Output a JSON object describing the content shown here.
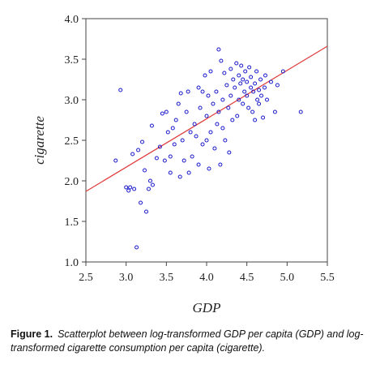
{
  "chart_data": {
    "type": "scatter",
    "xlabel": "GDP",
    "ylabel": "cigarette",
    "xlim": [
      2.5,
      5.5
    ],
    "ylim": [
      1.0,
      4.0
    ],
    "xticks": [
      "2.5",
      "3.0",
      "3.5",
      "4.0",
      "4.5",
      "5.0",
      "5.5"
    ],
    "yticks": [
      "1.0",
      "1.5",
      "2.0",
      "2.5",
      "3.0",
      "3.5",
      "4.0"
    ],
    "marker_color": "#1a1acc",
    "fit_line_color": "#e03a3a",
    "fit_line": {
      "x": [
        2.5,
        5.5
      ],
      "y": [
        1.87,
        3.66
      ]
    },
    "points": [
      {
        "x": 2.87,
        "y": 2.25
      },
      {
        "x": 2.93,
        "y": 3.12
      },
      {
        "x": 3.0,
        "y": 1.92
      },
      {
        "x": 3.03,
        "y": 1.88
      },
      {
        "x": 3.05,
        "y": 1.92
      },
      {
        "x": 3.08,
        "y": 2.33
      },
      {
        "x": 3.1,
        "y": 1.9
      },
      {
        "x": 3.13,
        "y": 1.18
      },
      {
        "x": 3.15,
        "y": 2.38
      },
      {
        "x": 3.18,
        "y": 1.73
      },
      {
        "x": 3.2,
        "y": 2.48
      },
      {
        "x": 3.23,
        "y": 2.13
      },
      {
        "x": 3.25,
        "y": 1.62
      },
      {
        "x": 3.28,
        "y": 1.9
      },
      {
        "x": 3.3,
        "y": 2.0
      },
      {
        "x": 3.32,
        "y": 2.68
      },
      {
        "x": 3.33,
        "y": 1.95
      },
      {
        "x": 3.38,
        "y": 2.28
      },
      {
        "x": 3.42,
        "y": 2.42
      },
      {
        "x": 3.45,
        "y": 2.83
      },
      {
        "x": 3.48,
        "y": 2.25
      },
      {
        "x": 3.5,
        "y": 2.85
      },
      {
        "x": 3.52,
        "y": 2.6
      },
      {
        "x": 3.55,
        "y": 2.1
      },
      {
        "x": 3.55,
        "y": 2.3
      },
      {
        "x": 3.58,
        "y": 2.65
      },
      {
        "x": 3.6,
        "y": 2.45
      },
      {
        "x": 3.62,
        "y": 2.75
      },
      {
        "x": 3.65,
        "y": 2.95
      },
      {
        "x": 3.67,
        "y": 2.05
      },
      {
        "x": 3.68,
        "y": 3.08
      },
      {
        "x": 3.7,
        "y": 2.5
      },
      {
        "x": 3.72,
        "y": 2.25
      },
      {
        "x": 3.75,
        "y": 2.85
      },
      {
        "x": 3.77,
        "y": 3.1
      },
      {
        "x": 3.78,
        "y": 2.1
      },
      {
        "x": 3.8,
        "y": 2.6
      },
      {
        "x": 3.82,
        "y": 2.3
      },
      {
        "x": 3.85,
        "y": 2.7
      },
      {
        "x": 3.87,
        "y": 2.55
      },
      {
        "x": 3.9,
        "y": 3.15
      },
      {
        "x": 3.9,
        "y": 2.2
      },
      {
        "x": 3.92,
        "y": 2.9
      },
      {
        "x": 3.95,
        "y": 3.1
      },
      {
        "x": 3.95,
        "y": 2.45
      },
      {
        "x": 3.98,
        "y": 3.3
      },
      {
        "x": 4.0,
        "y": 2.5
      },
      {
        "x": 4.0,
        "y": 2.8
      },
      {
        "x": 4.02,
        "y": 3.05
      },
      {
        "x": 4.03,
        "y": 2.15
      },
      {
        "x": 4.05,
        "y": 3.35
      },
      {
        "x": 4.05,
        "y": 2.6
      },
      {
        "x": 4.08,
        "y": 2.95
      },
      {
        "x": 4.1,
        "y": 2.4
      },
      {
        "x": 4.12,
        "y": 3.1
      },
      {
        "x": 4.13,
        "y": 2.7
      },
      {
        "x": 4.15,
        "y": 3.62
      },
      {
        "x": 4.15,
        "y": 2.85
      },
      {
        "x": 4.17,
        "y": 2.2
      },
      {
        "x": 4.18,
        "y": 3.48
      },
      {
        "x": 4.2,
        "y": 2.65
      },
      {
        "x": 4.2,
        "y": 3.0
      },
      {
        "x": 4.22,
        "y": 3.33
      },
      {
        "x": 4.23,
        "y": 2.5
      },
      {
        "x": 4.25,
        "y": 3.18
      },
      {
        "x": 4.27,
        "y": 2.9
      },
      {
        "x": 4.28,
        "y": 2.35
      },
      {
        "x": 4.3,
        "y": 3.38
      },
      {
        "x": 4.3,
        "y": 3.05
      },
      {
        "x": 4.32,
        "y": 2.75
      },
      {
        "x": 4.33,
        "y": 3.25
      },
      {
        "x": 4.35,
        "y": 3.15
      },
      {
        "x": 4.37,
        "y": 3.45
      },
      {
        "x": 4.38,
        "y": 2.8
      },
      {
        "x": 4.4,
        "y": 3.3
      },
      {
        "x": 4.4,
        "y": 3.0
      },
      {
        "x": 4.42,
        "y": 3.2
      },
      {
        "x": 4.43,
        "y": 3.42
      },
      {
        "x": 4.45,
        "y": 2.95
      },
      {
        "x": 4.45,
        "y": 3.25
      },
      {
        "x": 4.47,
        "y": 3.1
      },
      {
        "x": 4.48,
        "y": 3.35
      },
      {
        "x": 4.5,
        "y": 3.05
      },
      {
        "x": 4.5,
        "y": 3.22
      },
      {
        "x": 4.52,
        "y": 2.9
      },
      {
        "x": 4.53,
        "y": 3.4
      },
      {
        "x": 4.55,
        "y": 3.15
      },
      {
        "x": 4.55,
        "y": 3.28
      },
      {
        "x": 4.57,
        "y": 2.85
      },
      {
        "x": 4.58,
        "y": 3.1
      },
      {
        "x": 4.6,
        "y": 3.2
      },
      {
        "x": 4.6,
        "y": 2.75
      },
      {
        "x": 4.62,
        "y": 3.35
      },
      {
        "x": 4.63,
        "y": 3.0
      },
      {
        "x": 4.65,
        "y": 3.12
      },
      {
        "x": 4.65,
        "y": 2.95
      },
      {
        "x": 4.67,
        "y": 3.25
      },
      {
        "x": 4.68,
        "y": 3.05
      },
      {
        "x": 4.7,
        "y": 2.78
      },
      {
        "x": 4.72,
        "y": 3.15
      },
      {
        "x": 4.73,
        "y": 3.3
      },
      {
        "x": 4.75,
        "y": 3.0
      },
      {
        "x": 4.8,
        "y": 3.22
      },
      {
        "x": 4.85,
        "y": 2.85
      },
      {
        "x": 4.88,
        "y": 3.18
      },
      {
        "x": 4.95,
        "y": 3.35
      },
      {
        "x": 5.17,
        "y": 2.85
      }
    ]
  },
  "caption": {
    "label": "Figure 1.",
    "text": "Scatterplot between log-transformed GDP per capita (GDP) and log-transformed cigarette consumption per capita (cigarette)."
  }
}
